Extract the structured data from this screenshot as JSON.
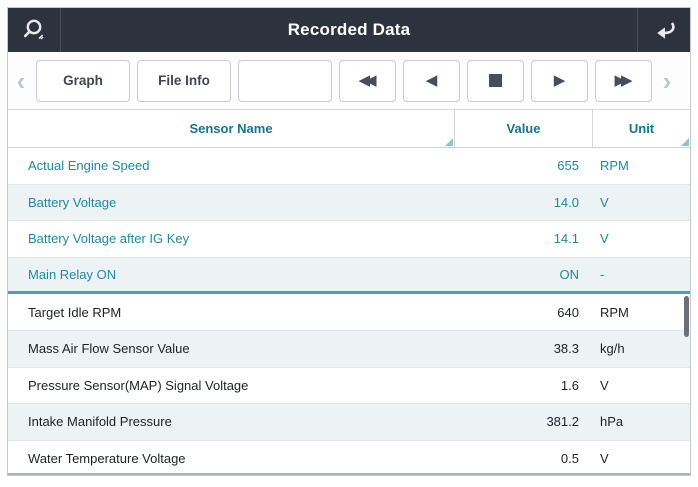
{
  "topbar": {
    "title": "Recorded Data",
    "search_icon": "magnifier-resizable",
    "return_icon": "return-arrow"
  },
  "toolbar": {
    "left_chevron": "‹",
    "right_chevron": "›",
    "nav_buttons": [
      {
        "name": "graph",
        "label": "Graph"
      },
      {
        "name": "file-info",
        "label": "File Info"
      },
      {
        "name": "empty",
        "label": ""
      }
    ],
    "media_buttons": [
      {
        "name": "fast-rewind",
        "glyph": "◀◀"
      },
      {
        "name": "step-back",
        "glyph": "◀"
      },
      {
        "name": "stop",
        "glyph": "■"
      },
      {
        "name": "play",
        "glyph": "▶"
      },
      {
        "name": "fast-forward",
        "glyph": "▶▶"
      }
    ]
  },
  "table": {
    "columns": [
      "Sensor Name",
      "Value",
      "Unit"
    ],
    "rows": [
      {
        "name": "Actual Engine Speed",
        "value": "655",
        "unit": "RPM",
        "selected": true
      },
      {
        "name": "Battery Voltage",
        "value": "14.0",
        "unit": "V",
        "selected": true
      },
      {
        "name": "Battery Voltage after IG Key",
        "value": "14.1",
        "unit": "V",
        "selected": true
      },
      {
        "name": "Main Relay ON",
        "value": "ON",
        "unit": "-",
        "selected": true
      },
      {
        "name": "Target Idle RPM",
        "value": "640",
        "unit": "RPM",
        "selected": false
      },
      {
        "name": "Mass Air Flow Sensor Value",
        "value": "38.3",
        "unit": "kg/h",
        "selected": false
      },
      {
        "name": "Pressure Sensor(MAP) Signal Voltage",
        "value": "1.6",
        "unit": "V",
        "selected": false
      },
      {
        "name": "Intake Manifold Pressure",
        "value": "381.2",
        "unit": "hPa",
        "selected": false
      },
      {
        "name": "Water Temperature Voltage",
        "value": "0.5",
        "unit": "V",
        "selected": false
      }
    ]
  },
  "colors": {
    "topbar_bg": "#2c333e",
    "accent_teal": "#16758a",
    "selected_row_text": "#1f89a1",
    "divider_teal": "#4aa0b5",
    "row_alt_bg": "#edf2f4"
  }
}
